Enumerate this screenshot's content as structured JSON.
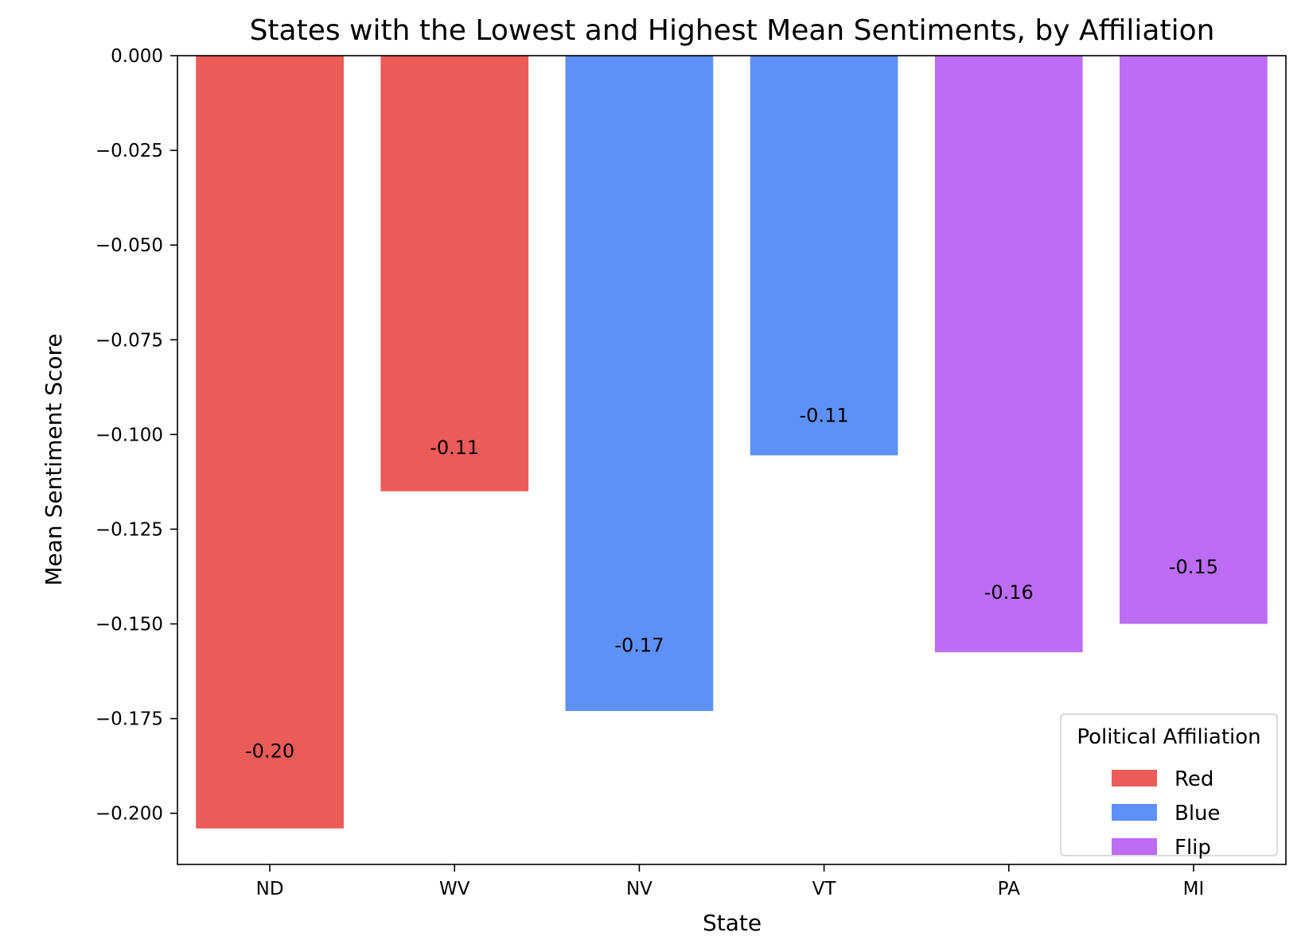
{
  "chart_data": {
    "type": "bar",
    "title": "States with the Lowest and Highest Mean Sentiments, by Affiliation",
    "xlabel": "State",
    "ylabel": "Mean Sentiment Score",
    "categories": [
      "ND",
      "WV",
      "NV",
      "VT",
      "PA",
      "MI"
    ],
    "values": [
      -0.204,
      -0.115,
      -0.173,
      -0.1055,
      -0.1575,
      -0.15
    ],
    "value_labels": [
      "-0.20",
      "-0.11",
      "-0.17",
      "-0.11",
      "-0.16",
      "-0.15"
    ],
    "affiliation": [
      "Red",
      "Red",
      "Blue",
      "Blue",
      "Flip",
      "Flip"
    ],
    "ylim": [
      -0.2135,
      0.0
    ],
    "yticks": [
      0.0,
      -0.025,
      -0.05,
      -0.075,
      -0.1,
      -0.125,
      -0.15,
      -0.175,
      -0.2
    ],
    "ytick_labels": [
      "0.000",
      "−0.025",
      "−0.050",
      "−0.075",
      "−0.100",
      "−0.125",
      "−0.150",
      "−0.175",
      "−0.200"
    ],
    "grid": false,
    "legend": {
      "title": "Political Affiliation",
      "placement": "lower-right",
      "entries": [
        {
          "label": "Red",
          "color": "#eb5b57"
        },
        {
          "label": "Blue",
          "color": "#5d91f7"
        },
        {
          "label": "Flip",
          "color": "#bd6cf5"
        }
      ]
    },
    "colors": {
      "Red": "#eb5b57",
      "Blue": "#5d91f7",
      "Flip": "#bd6cf5"
    }
  }
}
